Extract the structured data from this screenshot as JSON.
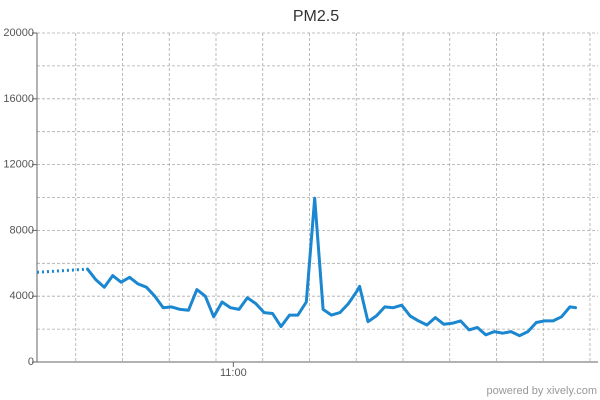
{
  "chart_data": {
    "type": "line",
    "title": "PM2.5",
    "xlabel": "",
    "ylabel": "",
    "ylim": [
      0,
      20000
    ],
    "y_ticks": [
      0,
      4000,
      8000,
      12000,
      16000,
      20000
    ],
    "x_ticks": [
      {
        "label": "11:00",
        "value": 35
      }
    ],
    "xlim": [
      0,
      100
    ],
    "grid": true,
    "legend": "none",
    "colors": {
      "line": "#1a87d0",
      "grid": "#aaaaaa",
      "axis": "#666666"
    },
    "series": [
      {
        "style": "dotted",
        "points": [
          [
            0,
            5450
          ],
          [
            9,
            5650
          ]
        ]
      },
      {
        "style": "solid",
        "points": [
          [
            9,
            5650
          ],
          [
            10.5,
            5000
          ],
          [
            12,
            4550
          ],
          [
            13.5,
            5250
          ],
          [
            15,
            4850
          ],
          [
            16.5,
            5150
          ],
          [
            18,
            4750
          ],
          [
            19.5,
            4550
          ],
          [
            21,
            4000
          ],
          [
            22.5,
            3300
          ],
          [
            24,
            3350
          ],
          [
            25.5,
            3200
          ],
          [
            27,
            3150
          ],
          [
            28.5,
            4400
          ],
          [
            30,
            4000
          ],
          [
            31.5,
            2750
          ],
          [
            33,
            3650
          ],
          [
            34.5,
            3300
          ],
          [
            36,
            3200
          ],
          [
            37.5,
            3900
          ],
          [
            39,
            3550
          ],
          [
            40.5,
            3000
          ],
          [
            42,
            2950
          ],
          [
            43.5,
            2150
          ],
          [
            45,
            2850
          ],
          [
            46.5,
            2850
          ],
          [
            48,
            3650
          ],
          [
            49.5,
            9950
          ],
          [
            51,
            3200
          ],
          [
            52.5,
            2850
          ],
          [
            54,
            3000
          ],
          [
            55.5,
            3550
          ],
          [
            57,
            4300
          ],
          [
            57.5,
            4600
          ],
          [
            59,
            2450
          ],
          [
            60.5,
            2800
          ],
          [
            62,
            3350
          ],
          [
            63.5,
            3300
          ],
          [
            65,
            3450
          ],
          [
            66.5,
            2800
          ],
          [
            68,
            2500
          ],
          [
            69.5,
            2250
          ],
          [
            71,
            2700
          ],
          [
            72.5,
            2300
          ],
          [
            74,
            2350
          ],
          [
            75.5,
            2500
          ],
          [
            77,
            1950
          ],
          [
            78.5,
            2100
          ],
          [
            80,
            1650
          ],
          [
            81.5,
            1850
          ],
          [
            83,
            1750
          ],
          [
            84.5,
            1850
          ],
          [
            86,
            1600
          ],
          [
            87.5,
            1850
          ],
          [
            89,
            2400
          ],
          [
            90.5,
            2500
          ],
          [
            92,
            2500
          ],
          [
            93.5,
            2750
          ],
          [
            95,
            3350
          ],
          [
            96,
            3300
          ]
        ]
      }
    ]
  },
  "footer": {
    "credit": "powered by xively.com"
  }
}
